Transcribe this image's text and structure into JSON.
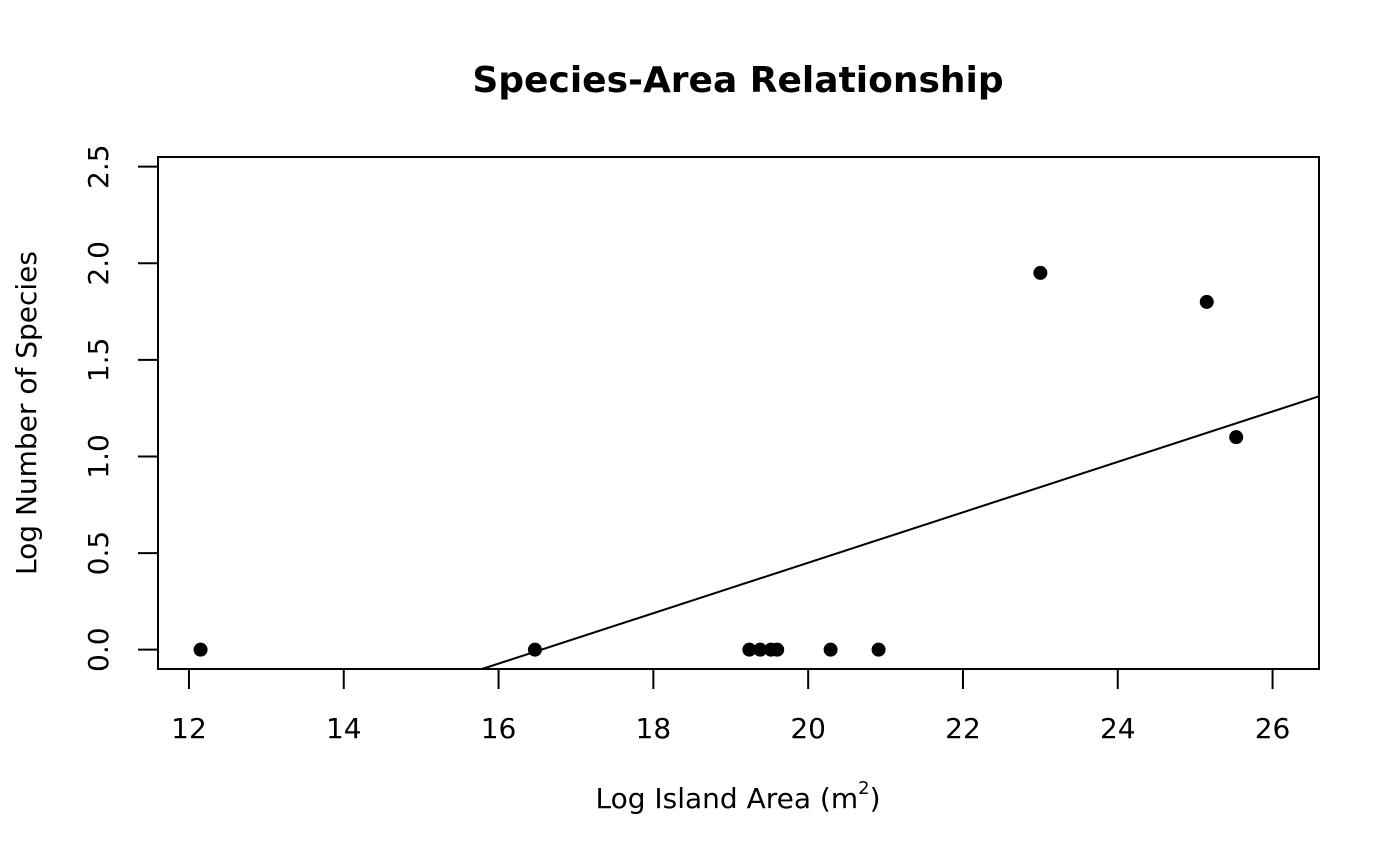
{
  "chart_data": {
    "type": "scatter",
    "title": "Species-Area Relationship",
    "xlabel": "Log Island Area (m",
    "xlabel_superscript": "2",
    "xlabel_suffix": ")",
    "ylabel": "Log Number of Species",
    "xlim": [
      11.6,
      26.6
    ],
    "ylim": [
      -0.1,
      2.55
    ],
    "x_ticks": [
      12,
      14,
      16,
      18,
      20,
      22,
      24,
      26
    ],
    "x_tick_labels": [
      "12",
      "14",
      "16",
      "18",
      "20",
      "22",
      "24",
      "26"
    ],
    "y_ticks": [
      0.0,
      0.5,
      1.0,
      1.5,
      2.0,
      2.5
    ],
    "y_tick_labels": [
      "0.0",
      "0.5",
      "1.0",
      "1.5",
      "2.0",
      "2.5"
    ],
    "grid": false,
    "series": [
      {
        "points": [
          {
            "x": 12.15,
            "y": 0.0
          },
          {
            "x": 16.47,
            "y": 0.0
          },
          {
            "x": 19.24,
            "y": 0.0
          },
          {
            "x": 19.38,
            "y": 0.0
          },
          {
            "x": 19.52,
            "y": 0.0
          },
          {
            "x": 19.6,
            "y": 0.0
          },
          {
            "x": 20.29,
            "y": 0.0
          },
          {
            "x": 20.91,
            "y": 0.0
          },
          {
            "x": 23.0,
            "y": 1.95
          },
          {
            "x": 25.15,
            "y": 1.8
          },
          {
            "x": 25.53,
            "y": 1.1
          }
        ],
        "color": "#000000"
      }
    ],
    "regression_line": {
      "intercept": -2.16,
      "slope": 0.1305,
      "color": "#000000"
    }
  }
}
